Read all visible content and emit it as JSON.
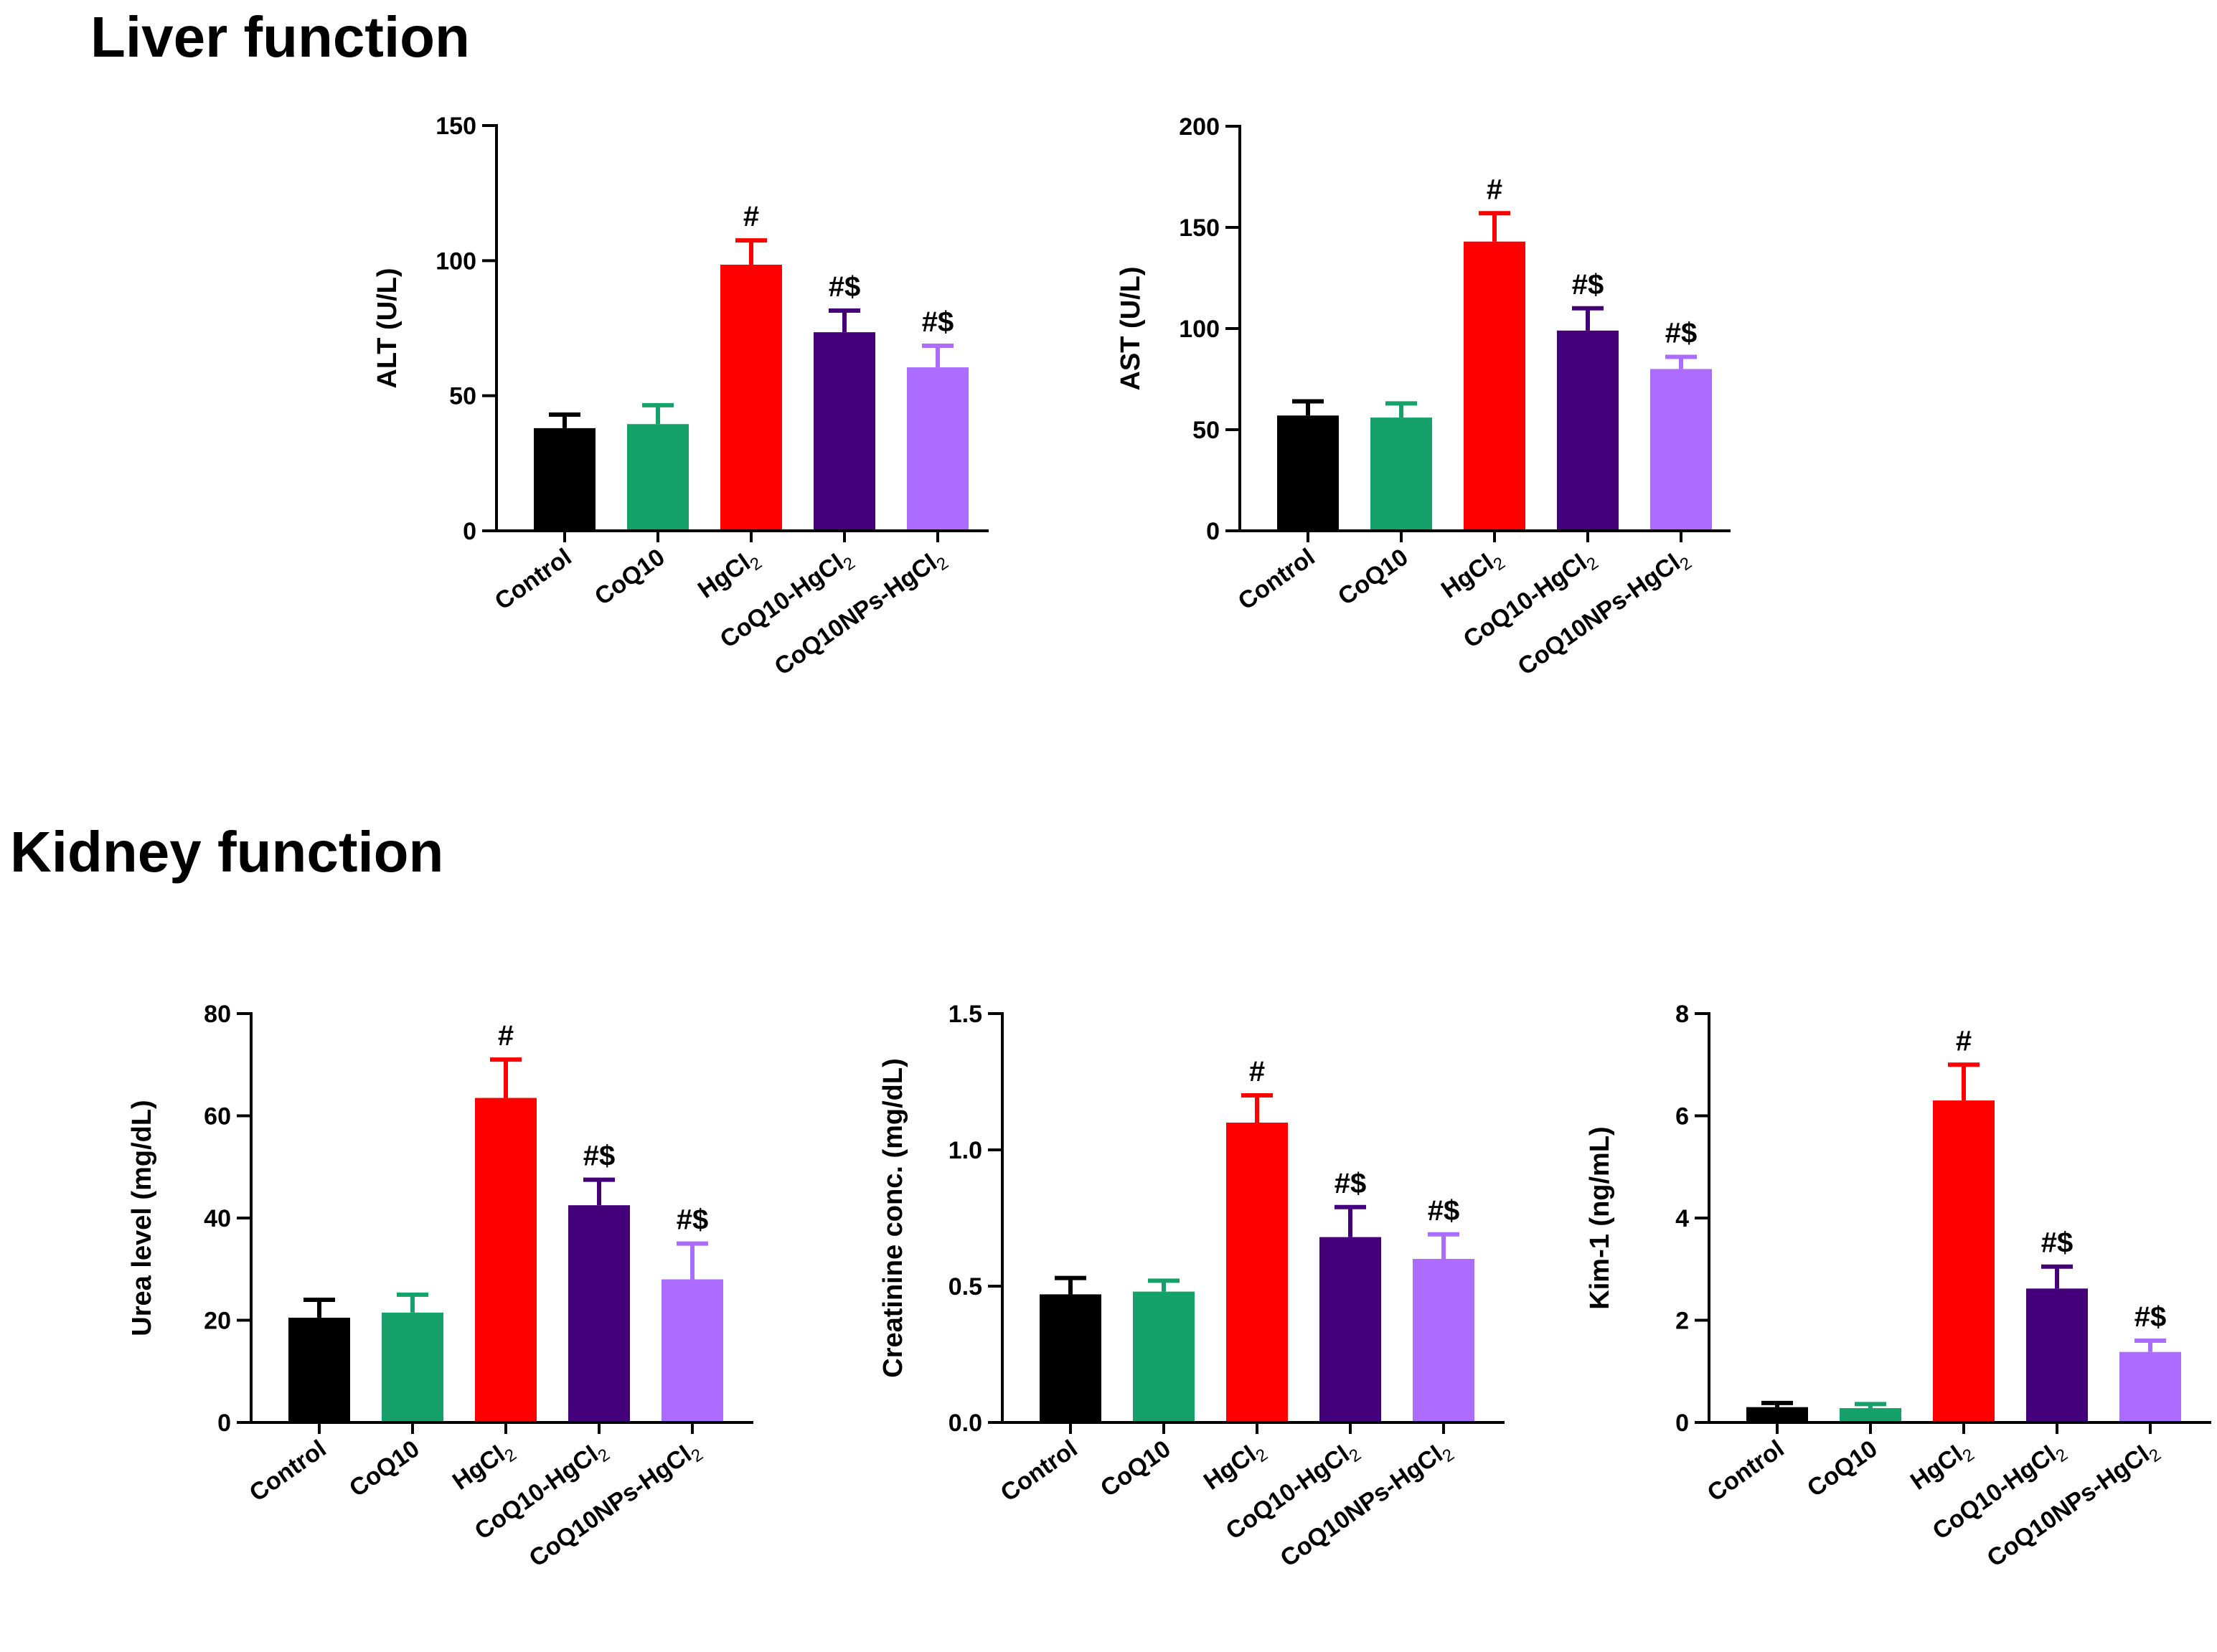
{
  "sections": {
    "liver_title": "Liver function",
    "kidney_title": "Kidney function"
  },
  "colors": {
    "Control": "#000000",
    "CoQ10": "#16a06a",
    "HgCl2": "#ff0000",
    "CoQ10-HgCl2": "#43007a",
    "CoQ10NPs-HgCl2": "#ab6cff"
  },
  "chart_data": [
    {
      "type": "bar",
      "section": "Liver function",
      "ylabel": "ALT (U/L)",
      "categories": [
        [
          "Control"
        ],
        [
          "CoQ10"
        ],
        [
          "HgCl",
          "2"
        ],
        [
          "CoQ10-HgCl",
          "2"
        ],
        [
          "CoQ10NPs-HgCl",
          "2"
        ]
      ],
      "series_keys": [
        "Control",
        "CoQ10",
        "HgCl2",
        "CoQ10-HgCl2",
        "CoQ10NPs-HgCl2"
      ],
      "values": [
        38,
        39.5,
        98.5,
        73.5,
        60.5
      ],
      "errors": [
        5,
        7,
        9,
        8,
        8
      ],
      "annotations": [
        "",
        "",
        "#",
        "#$",
        "#$"
      ],
      "ylim": [
        0,
        150
      ],
      "yticks": [
        0,
        50,
        100,
        150
      ],
      "tick_labels": [
        "0",
        "50",
        "100",
        "150"
      ]
    },
    {
      "type": "bar",
      "section": "Liver function",
      "ylabel": "AST (U/L)",
      "categories": [
        [
          "Control"
        ],
        [
          "CoQ10"
        ],
        [
          "HgCl",
          "2"
        ],
        [
          "CoQ10-HgCl",
          "2"
        ],
        [
          "CoQ10NPs-HgCl",
          "2"
        ]
      ],
      "series_keys": [
        "Control",
        "CoQ10",
        "HgCl2",
        "CoQ10-HgCl2",
        "CoQ10NPs-HgCl2"
      ],
      "values": [
        57,
        56,
        143,
        99,
        80
      ],
      "errors": [
        7,
        7,
        14,
        11,
        6
      ],
      "annotations": [
        "",
        "",
        "#",
        "#$",
        "#$"
      ],
      "ylim": [
        0,
        200
      ],
      "yticks": [
        0,
        50,
        100,
        150,
        200
      ],
      "tick_labels": [
        "0",
        "50",
        "100",
        "150",
        "200"
      ]
    },
    {
      "type": "bar",
      "section": "Kidney function",
      "ylabel": "Urea level (mg/dL)",
      "categories": [
        [
          "Control"
        ],
        [
          "CoQ10"
        ],
        [
          "HgCl",
          "2"
        ],
        [
          "CoQ10-HgCl",
          "2"
        ],
        [
          "CoQ10NPs-HgCl",
          "2"
        ]
      ],
      "series_keys": [
        "Control",
        "CoQ10",
        "HgCl2",
        "CoQ10-HgCl2",
        "CoQ10NPs-HgCl2"
      ],
      "values": [
        20.5,
        21.5,
        63.5,
        42.5,
        28
      ],
      "errors": [
        3.5,
        3.5,
        7.5,
        5,
        7
      ],
      "annotations": [
        "",
        "",
        "#",
        "#$",
        "#$"
      ],
      "ylim": [
        0,
        80
      ],
      "yticks": [
        0,
        20,
        40,
        60,
        80
      ],
      "tick_labels": [
        "0",
        "20",
        "40",
        "60",
        "80"
      ]
    },
    {
      "type": "bar",
      "section": "Kidney function",
      "ylabel": "Creatinine conc. (mg/dL)",
      "categories": [
        [
          "Control"
        ],
        [
          "CoQ10"
        ],
        [
          "HgCl",
          "2"
        ],
        [
          "CoQ10-HgCl",
          "2"
        ],
        [
          "CoQ10NPs-HgCl",
          "2"
        ]
      ],
      "series_keys": [
        "Control",
        "CoQ10",
        "HgCl2",
        "CoQ10-HgCl2",
        "CoQ10NPs-HgCl2"
      ],
      "values": [
        0.47,
        0.48,
        1.1,
        0.68,
        0.6
      ],
      "errors": [
        0.06,
        0.04,
        0.1,
        0.11,
        0.09
      ],
      "annotations": [
        "",
        "",
        "#",
        "#$",
        "#$"
      ],
      "ylim": [
        0,
        1.5
      ],
      "yticks": [
        0,
        0.5,
        1.0,
        1.5
      ],
      "tick_labels": [
        "0.0",
        "0.5",
        "1.0",
        "1.5"
      ]
    },
    {
      "type": "bar",
      "section": "Kidney function",
      "ylabel": "Kim-1 (ng/mL)",
      "categories": [
        [
          "Control"
        ],
        [
          "CoQ10"
        ],
        [
          "HgCl",
          "2"
        ],
        [
          "CoQ10-HgCl",
          "2"
        ],
        [
          "CoQ10NPs-HgCl",
          "2"
        ]
      ],
      "series_keys": [
        "Control",
        "CoQ10",
        "HgCl2",
        "CoQ10-HgCl2",
        "CoQ10NPs-HgCl2"
      ],
      "values": [
        0.3,
        0.28,
        6.3,
        2.62,
        1.38
      ],
      "errors": [
        0.08,
        0.08,
        0.7,
        0.43,
        0.22
      ],
      "annotations": [
        "",
        "",
        "#",
        "#$",
        "#$"
      ],
      "ylim": [
        0,
        8
      ],
      "yticks": [
        0,
        2,
        4,
        6,
        8
      ],
      "tick_labels": [
        "0",
        "2",
        "4",
        "6",
        "8"
      ]
    }
  ]
}
